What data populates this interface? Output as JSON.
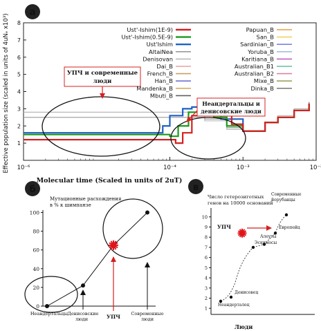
{
  "panel_a": {
    "badge": "a",
    "ylabel": "Effective population size (scaled in units of 4uNₑ x10³)",
    "xlabel": "Molecular  time (Scaled in units of 2uT)",
    "y_ticks": [
      "1",
      "2",
      "3",
      "4",
      "5",
      "6",
      "7",
      "8"
    ],
    "x_ticks": [
      "10⁻⁶",
      "10⁻⁴",
      "10⁻³",
      "10⁻²"
    ],
    "annot_left": [
      "УПЧ и современные",
      "люди"
    ],
    "annot_right": [
      "Неандертальцы и",
      "денисовские люди"
    ],
    "legend_left": [
      {
        "name": "Ust'-Ishim(1E-9)",
        "color": "#d42020"
      },
      {
        "name": "Ust'-Ishim(0.5E-9)",
        "color": "#1a9a1a"
      },
      {
        "name": "Ust'Ishim",
        "color": "#1f5fc8"
      },
      {
        "name": "AltaiNea",
        "color": "#9a9a9a"
      },
      {
        "name": "Denisovan",
        "color": "#b8b8b8"
      },
      {
        "name": "Dai_B",
        "color": "#e8a0a0"
      },
      {
        "name": "French_B",
        "color": "#c8a060"
      },
      {
        "name": "Han_B",
        "color": "#7070d0"
      },
      {
        "name": "Mandenka_B",
        "color": "#d0b060"
      },
      {
        "name": "Mbuti_B",
        "color": "#606060"
      }
    ],
    "legend_right": [
      {
        "name": "Papuan_B",
        "color": "#e0a040"
      },
      {
        "name": "San_B",
        "color": "#f0d060"
      },
      {
        "name": "Sardinian_B",
        "color": "#8080e0"
      },
      {
        "name": "Yoruba_B",
        "color": "#a0c0e0"
      },
      {
        "name": "Karitiana_B",
        "color": "#c060c0"
      },
      {
        "name": "Australian_B1",
        "color": "#60c0a0"
      },
      {
        "name": "Australian_B2",
        "color": "#e080a0"
      },
      {
        "name": "Mixe_B",
        "color": "#a0a060"
      },
      {
        "name": "Dinka_B",
        "color": "#808080"
      }
    ]
  },
  "panel_b": {
    "badge": "б",
    "ylabel_lines": [
      "Мутационные расхождения",
      "в % к шимпанзе"
    ],
    "y_ticks": [
      "0",
      "20",
      "40",
      "60",
      "80",
      "100"
    ],
    "labels": {
      "neanderthal": "Неандертальцы",
      "denisovan": [
        "Денисовские",
        "люди"
      ],
      "upch": "УПЧ",
      "modern": [
        "Современные",
        "люди"
      ]
    }
  },
  "panel_c": {
    "badge": "в",
    "ylabel_lines": [
      "Число гетерозиготных",
      "генов на 10000 оснований"
    ],
    "xlabel": "Люди",
    "y_ticks": [
      "1",
      "2",
      "3",
      "4",
      "5",
      "6",
      "7",
      "8",
      "9",
      "10"
    ],
    "labels": {
      "neanderthal": "Неандерталец",
      "denisovan": "Денисовец",
      "upch": "УПЧ",
      "aleut": "Алеуты",
      "eskimo": "Эскимосы",
      "european": "Европейц",
      "modern": [
        "Современные",
        "йорубанцы"
      ]
    }
  },
  "chart_data": [
    {
      "type": "line",
      "title": "",
      "xlabel": "Molecular  time (Scaled in units of 2uT)",
      "ylabel": "Effective population size (scaled in units of 4uNₑ x10³)",
      "xscale": "log",
      "xlim": [
        1e-06,
        0.01
      ],
      "ylim": [
        0,
        8
      ],
      "legend": "top-right",
      "series": [
        {
          "name": "Ust'-Ishim(1E-9)",
          "x": [
            1e-06,
            0.0001,
            0.00012,
            0.00015,
            0.0002,
            0.0003,
            0.0005,
            0.0007,
            0.001,
            0.002,
            0.003,
            0.005,
            0.008
          ],
          "y": [
            1.2,
            1.2,
            1.0,
            1.6,
            2.6,
            3.2,
            2.6,
            2.1,
            1.7,
            2.2,
            2.5,
            2.9,
            3.3
          ]
        },
        {
          "name": "Ust'-Ishim(0.5E-9)",
          "x": [
            1e-06,
            8e-05,
            0.0001,
            0.00013,
            0.00018,
            0.00025,
            0.0004,
            0.0006,
            0.001,
            0.002,
            0.003,
            0.005,
            0.008
          ],
          "y": [
            1.5,
            1.5,
            1.4,
            2.0,
            2.8,
            3.2,
            2.5,
            2.0,
            1.7,
            2.2,
            2.5,
            2.9,
            3.3
          ]
        },
        {
          "name": "Ust'Ishim",
          "x": [
            1e-06,
            6e-05,
            8e-05,
            0.0001,
            0.00015,
            0.0002,
            0.0003,
            0.0005,
            0.001,
            0.002,
            0.003,
            0.005,
            0.008
          ],
          "y": [
            1.6,
            1.6,
            2.0,
            2.6,
            3.0,
            3.1,
            3.0,
            2.4,
            1.7,
            2.2,
            2.5,
            2.9,
            3.3
          ]
        },
        {
          "name": "AltaiNea",
          "x": [
            1e-06,
            0.0003,
            0.0006,
            0.001,
            0.002,
            0.003,
            0.005,
            0.008
          ],
          "y": [
            2.5,
            2.4,
            1.9,
            1.7,
            2.2,
            2.5,
            2.9,
            3.4
          ]
        },
        {
          "name": "Denisovan",
          "x": [
            1e-06,
            0.0003,
            0.0006,
            0.001,
            0.002,
            0.003,
            0.005,
            0.008
          ],
          "y": [
            2.8,
            2.3,
            1.8,
            1.7,
            2.2,
            2.6,
            3.0,
            3.4
          ]
        }
      ]
    },
    {
      "type": "line",
      "title": "",
      "ylabel": "Мутационные расхождения в % к шимпанзе",
      "categories": [
        "Неандертальцы",
        "Денисовские люди",
        "УПЧ",
        "Современные люди"
      ],
      "values": [
        0,
        22,
        65,
        100
      ],
      "ylim": [
        0,
        100
      ]
    },
    {
      "type": "scatter",
      "title": "",
      "ylabel": "Число гетерозиготных генов на 10000 оснований",
      "xlabel": "Люди",
      "ylim": [
        1,
        10
      ],
      "points": [
        {
          "label": "Неандерталец",
          "x": 1,
          "y": 1.7
        },
        {
          "label": "Денисовец",
          "x": 2,
          "y": 2.1
        },
        {
          "label": "УПЧ",
          "x": 3,
          "y": 8.4
        },
        {
          "label": "Эскимосы",
          "x": 4,
          "y": 7.0
        },
        {
          "label": "Алеуты",
          "x": 5,
          "y": 7.3
        },
        {
          "label": "Европейц",
          "x": 6,
          "y": 8.4
        },
        {
          "label": "Современные йорубанцы",
          "x": 7,
          "y": 10.2
        }
      ]
    }
  ]
}
